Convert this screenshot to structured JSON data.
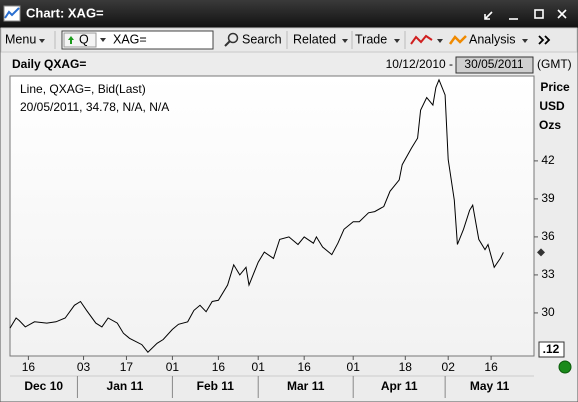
{
  "window": {
    "title": "Chart: XAG="
  },
  "toolbar": {
    "menu": "Menu",
    "ric_prefix": "Q",
    "ric": "XAG=",
    "search": "Search",
    "related": "Related",
    "trade": "Trade",
    "analysis": "Analysis"
  },
  "header": {
    "name": "Daily QXAG=",
    "start": "10/12/2010 -",
    "end": "30/05/2011",
    "timezone": "(GMT)"
  },
  "chart_data": {
    "type": "line",
    "legend_title": "Line, QXAG=, Bid(Last)",
    "legend_detail": "20/05/2011, 34.78, N/A, N/A",
    "y_axis_label": [
      "Price",
      "USD",
      "Ozs"
    ],
    "scale_label": ".12",
    "color": "#000000",
    "grid": false,
    "x": [
      "2010-12-10",
      "2010-12-12",
      "2010-12-13",
      "2010-12-15",
      "2010-12-18",
      "2010-12-22",
      "2010-12-25",
      "2010-12-28",
      "2010-12-31",
      "2011-01-02",
      "2011-01-04",
      "2011-01-07",
      "2011-01-09",
      "2011-01-11",
      "2011-01-14",
      "2011-01-16",
      "2011-01-18",
      "2011-01-22",
      "2011-01-24",
      "2011-01-27",
      "2011-01-29",
      "2011-02-01",
      "2011-02-03",
      "2011-02-06",
      "2011-02-08",
      "2011-02-10",
      "2011-02-12",
      "2011-02-14",
      "2011-02-16",
      "2011-02-19",
      "2011-02-21",
      "2011-02-23",
      "2011-02-25",
      "2011-02-26",
      "2011-03-01",
      "2011-03-03",
      "2011-03-06",
      "2011-03-08",
      "2011-03-11",
      "2011-03-14",
      "2011-03-16",
      "2011-03-19",
      "2011-03-20",
      "2011-03-22",
      "2011-03-25",
      "2011-03-27",
      "2011-03-29",
      "2011-04-01",
      "2011-04-03",
      "2011-04-06",
      "2011-04-08",
      "2011-04-11",
      "2011-04-13",
      "2011-04-16",
      "2011-04-17",
      "2011-04-20",
      "2011-04-22",
      "2011-04-23",
      "2011-04-25",
      "2011-04-27",
      "2011-04-28",
      "2011-04-29",
      "2011-05-01",
      "2011-05-02",
      "2011-05-04",
      "2011-05-05",
      "2011-05-07",
      "2011-05-09",
      "2011-05-10",
      "2011-05-12",
      "2011-05-14",
      "2011-05-15",
      "2011-05-17",
      "2011-05-19",
      "2011-05-20"
    ],
    "values": [
      28.8,
      29.6,
      29.4,
      28.9,
      29.3,
      29.2,
      29.3,
      29.6,
      30.6,
      30.9,
      30.2,
      29.2,
      28.9,
      29.6,
      29.2,
      28.4,
      28.0,
      27.5,
      26.9,
      27.6,
      27.9,
      28.7,
      29.1,
      29.3,
      30.2,
      30.6,
      30.1,
      30.9,
      31.0,
      32.2,
      33.8,
      33.0,
      33.6,
      32.2,
      34.0,
      34.8,
      34.3,
      35.8,
      36.0,
      35.4,
      36.0,
      35.5,
      36.0,
      35.2,
      34.6,
      35.5,
      36.6,
      37.2,
      37.2,
      37.9,
      38.0,
      38.4,
      39.6,
      40.5,
      41.7,
      43.0,
      43.8,
      46.0,
      47.0,
      46.4,
      47.8,
      48.4,
      47.2,
      42.1,
      38.9,
      35.4,
      36.6,
      38.1,
      38.5,
      35.8,
      35.0,
      35.4,
      33.6,
      34.3,
      34.78
    ],
    "xlim": [
      "2010-12-10",
      "2011-05-30"
    ],
    "xticks": [
      {
        "value": "2010-12-16",
        "label": "16"
      },
      {
        "value": "2011-01-03",
        "label": "03"
      },
      {
        "value": "2011-01-17",
        "label": "17"
      },
      {
        "value": "2011-02-01",
        "label": "01"
      },
      {
        "value": "2011-02-16",
        "label": "16"
      },
      {
        "value": "2011-03-01",
        "label": "01"
      },
      {
        "value": "2011-03-16",
        "label": "16"
      },
      {
        "value": "2011-04-01",
        "label": "01"
      },
      {
        "value": "2011-04-18",
        "label": "18"
      },
      {
        "value": "2011-05-02",
        "label": "02"
      },
      {
        "value": "2011-05-16",
        "label": "16"
      }
    ],
    "x_groups": [
      {
        "value": "2010-12",
        "label": "Dec 10"
      },
      {
        "value": "2011-01",
        "label": "Jan 11"
      },
      {
        "value": "2011-02",
        "label": "Feb 11"
      },
      {
        "value": "2011-03",
        "label": "Mar 11"
      },
      {
        "value": "2011-04",
        "label": "Apr 11"
      },
      {
        "value": "2011-05",
        "label": "May 11"
      }
    ],
    "ylim": [
      26.6,
      48.7
    ],
    "yticks": [
      30,
      33,
      36,
      39,
      42
    ]
  }
}
